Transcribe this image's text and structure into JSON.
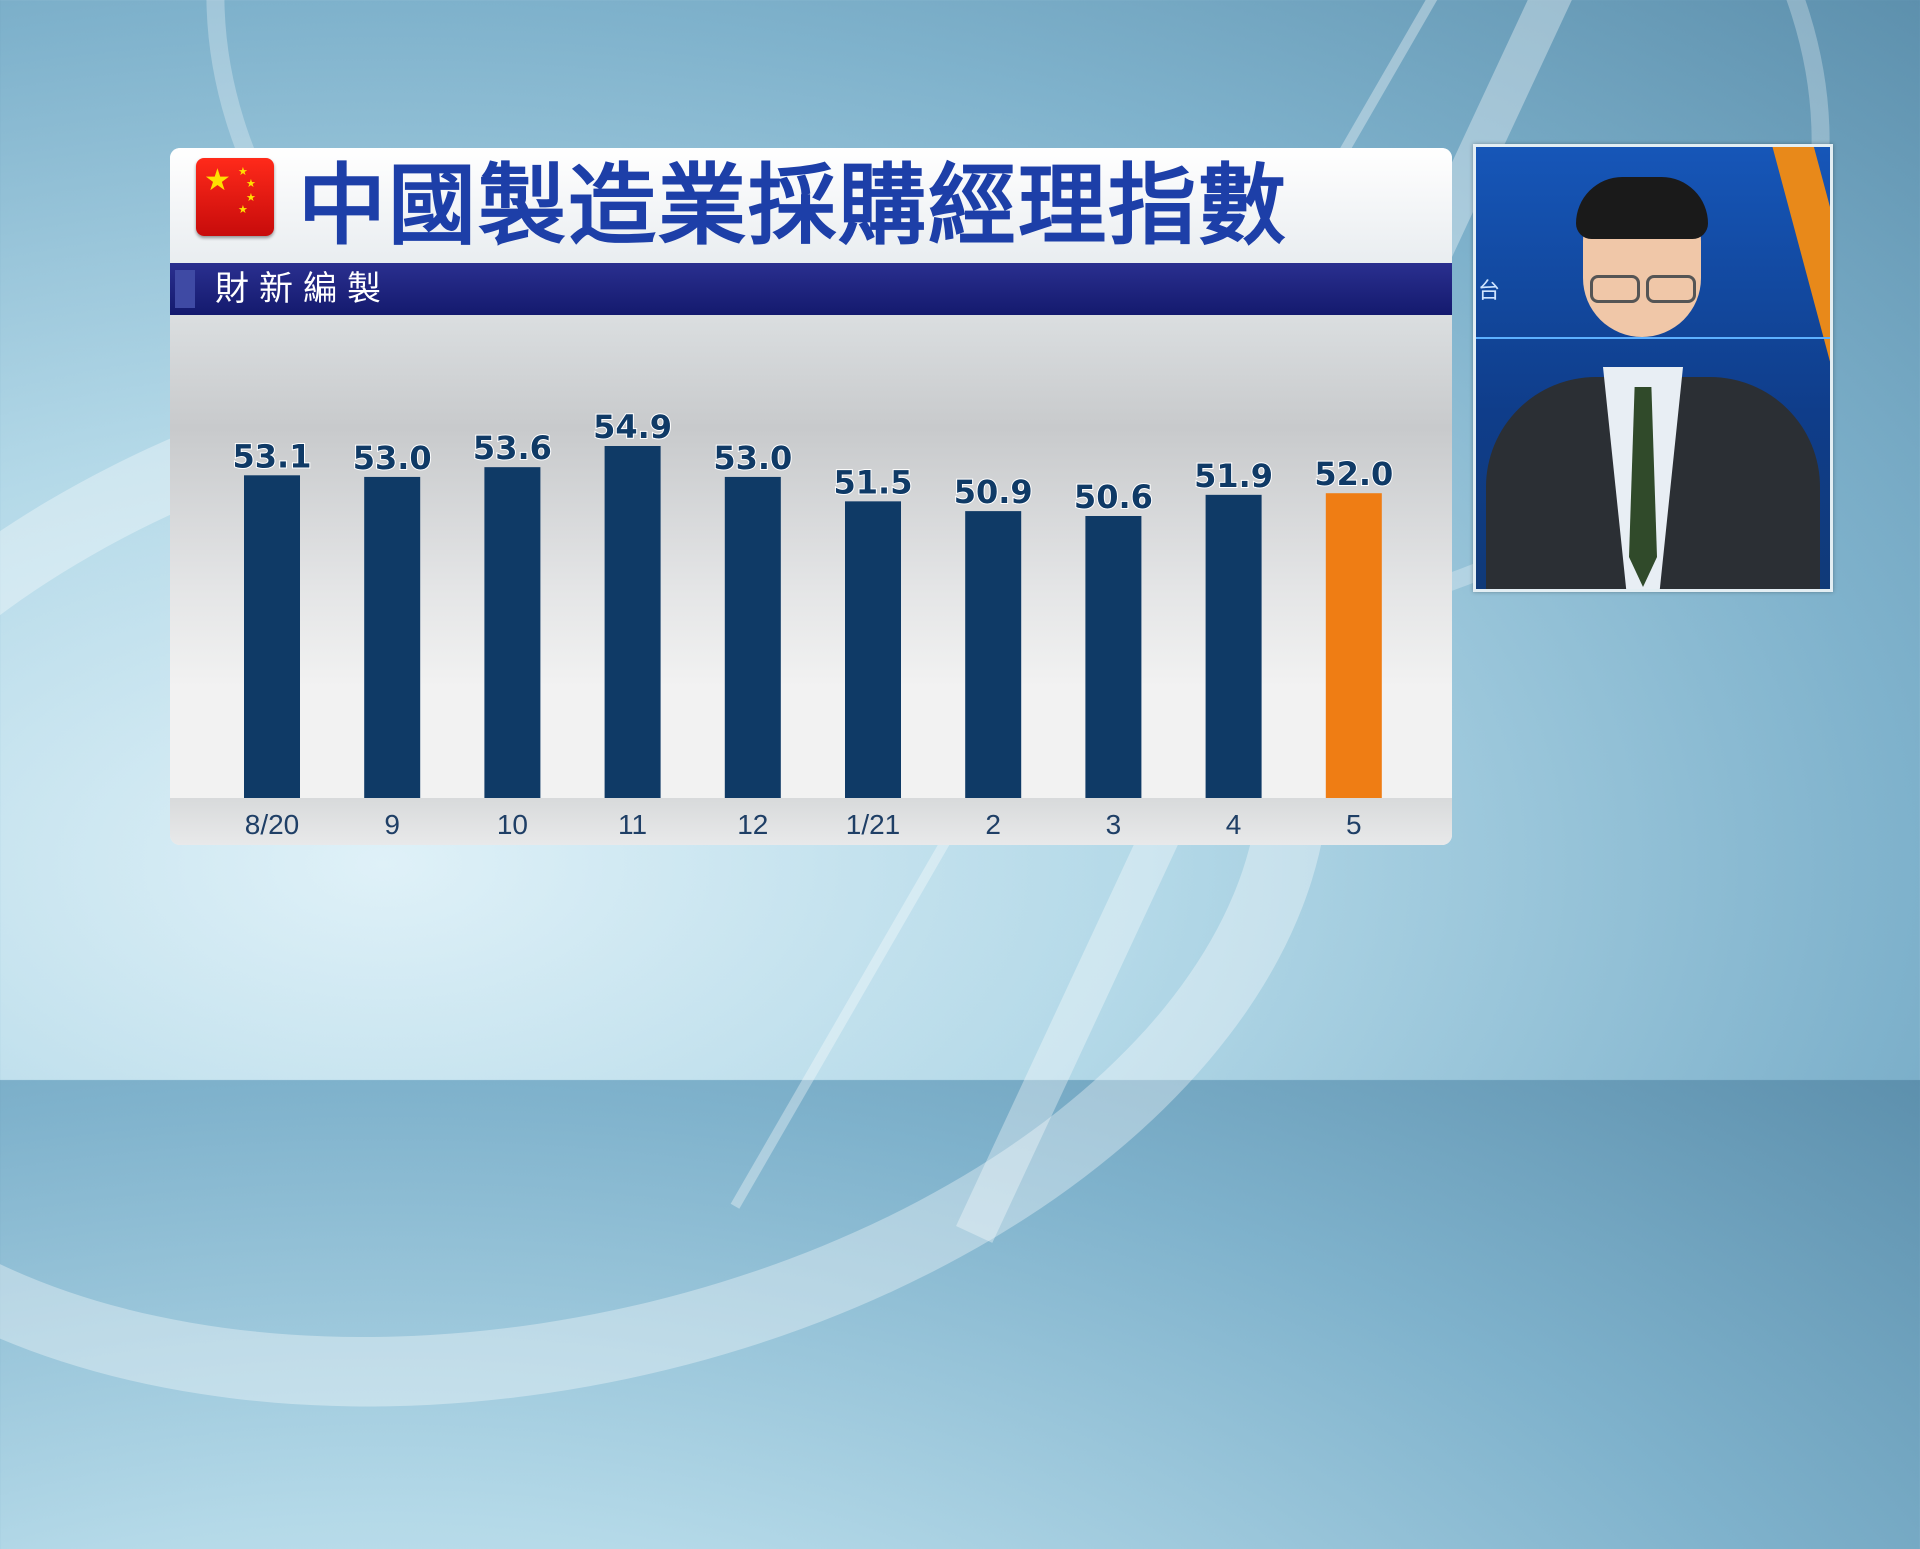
{
  "title": "中國製造業採購經理指數",
  "subtitle": "財新編製",
  "presenter_backdrop_text": "台",
  "colors": {
    "bar": "#0f3a66",
    "highlight_bar": "#ef7d14",
    "title": "#1d3fa8",
    "label": "#0f3a66",
    "axis_text": "#1f3f66"
  },
  "icons": [
    "china-flag-icon"
  ],
  "chart_data": {
    "type": "bar",
    "title": "中國製造業採購經理指數",
    "subtitle": "財新編製",
    "categories": [
      "8/20",
      "9",
      "10",
      "11",
      "12",
      "1/21",
      "2",
      "3",
      "4",
      "5"
    ],
    "values": [
      53.1,
      53.0,
      53.6,
      54.9,
      53.0,
      51.5,
      50.9,
      50.6,
      51.9,
      52.0
    ],
    "value_labels": [
      "53.1",
      "53.0",
      "53.6",
      "54.9",
      "53.0",
      "51.5",
      "50.9",
      "50.6",
      "51.9",
      "52.0"
    ],
    "highlight_index": 9,
    "xlabel": "",
    "ylabel": "",
    "grid": false,
    "legend": "none"
  }
}
